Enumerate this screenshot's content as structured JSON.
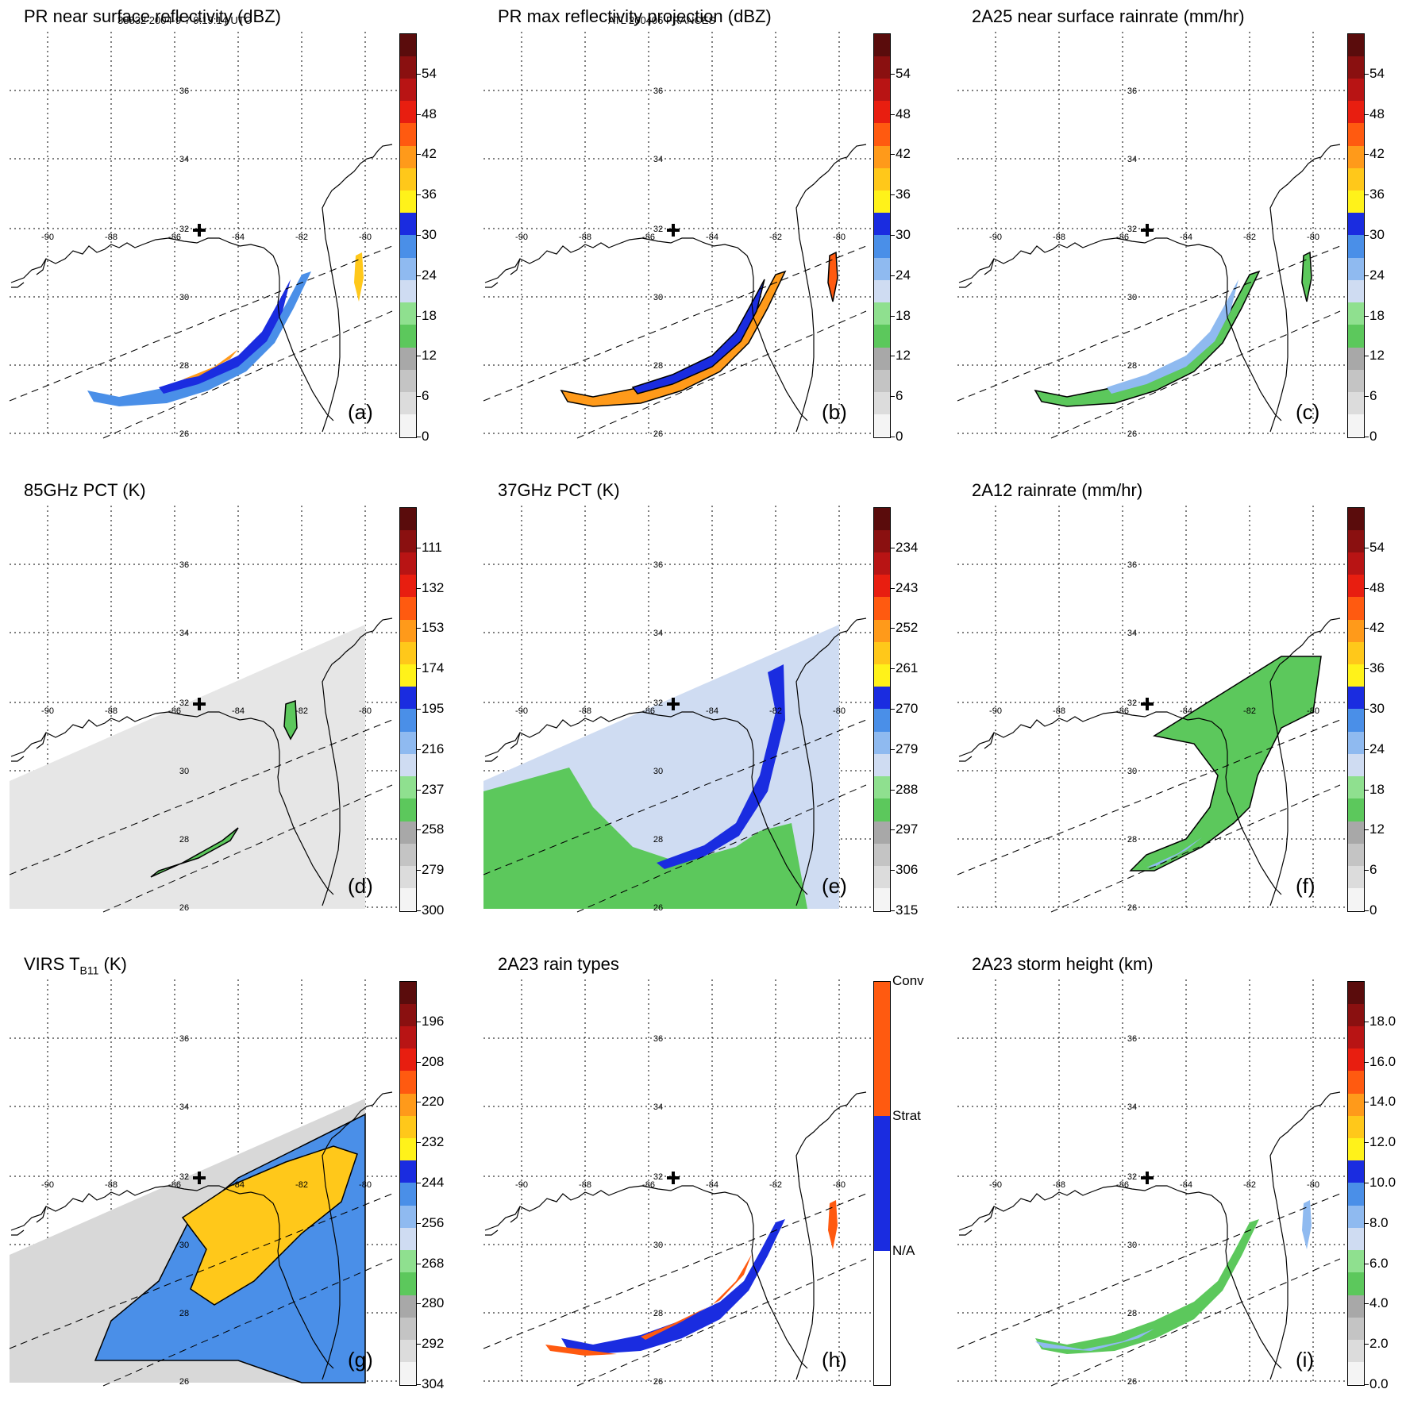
{
  "header": {
    "orbit_time": "38832 2004-9-7 9:19:14 UTC",
    "storm": "ATL 200406 FRANCES"
  },
  "lat_labels": [
    "36",
    "34",
    "32",
    "30",
    "28",
    "26"
  ],
  "lon_labels": [
    "-90",
    "-88",
    "-86",
    "-84",
    "-82",
    "-80"
  ],
  "colors": {
    "ramp14": [
      "#f4f4f4",
      "#dcdcdc",
      "#c4c4c4",
      "#a8a8a8",
      "#5cc85c",
      "#8fe08f",
      "#cfdcf2",
      "#8fbaf0",
      "#4a8fe8",
      "#1a2ce0",
      "#fff21a",
      "#ffc81a",
      "#ff9a1a",
      "#ff5a10",
      "#e81e10",
      "#b81414",
      "#8a1010",
      "#5a0c0c"
    ],
    "raintype": [
      "#ffffff",
      "#1a2ce0",
      "#ff5a10"
    ]
  },
  "panels": [
    {
      "id": "a",
      "title": "PR near surface reflectivity (dBZ)",
      "label": "(a)",
      "ticks": [
        "54",
        "48",
        "42",
        "36",
        "30",
        "24",
        "18",
        "12",
        "6",
        "0"
      ]
    },
    {
      "id": "b",
      "title": "PR max reflectivity projection (dBZ)",
      "label": "(b)",
      "ticks": [
        "54",
        "48",
        "42",
        "36",
        "30",
        "24",
        "18",
        "12",
        "6",
        "0"
      ]
    },
    {
      "id": "c",
      "title": "2A25 near surface rainrate (mm/hr)",
      "label": "(c)",
      "ticks": [
        "54",
        "48",
        "42",
        "36",
        "30",
        "24",
        "18",
        "12",
        "6",
        "0"
      ]
    },
    {
      "id": "d",
      "title": "85GHz PCT (K)",
      "label": "(d)",
      "ticks": [
        "111",
        "132",
        "153",
        "174",
        "195",
        "216",
        "237",
        "258",
        "279",
        "300"
      ]
    },
    {
      "id": "e",
      "title": "37GHz PCT (K)",
      "label": "(e)",
      "ticks": [
        "234",
        "243",
        "252",
        "261",
        "270",
        "279",
        "288",
        "297",
        "306",
        "315"
      ]
    },
    {
      "id": "f",
      "title": "2A12 rainrate (mm/hr)",
      "label": "(f)",
      "ticks": [
        "54",
        "48",
        "42",
        "36",
        "30",
        "24",
        "18",
        "12",
        "6",
        "0"
      ]
    },
    {
      "id": "g",
      "title": "VIRS T",
      "title_sub": "B11",
      "title_end": " (K)",
      "label": "(g)",
      "ticks": [
        "196",
        "208",
        "220",
        "232",
        "244",
        "256",
        "268",
        "280",
        "292",
        "304"
      ]
    },
    {
      "id": "h",
      "title": "2A23 rain types",
      "label": "(h)",
      "ticks": [
        "Conv",
        "Strat",
        "N/A"
      ]
    },
    {
      "id": "i",
      "title": "2A23 storm height (km)",
      "label": "(i)",
      "ticks": [
        "18.0",
        "16.0",
        "14.0",
        "12.0",
        "10.0",
        "8.0",
        "6.0",
        "4.0",
        "2.0",
        "0.0"
      ]
    }
  ]
}
